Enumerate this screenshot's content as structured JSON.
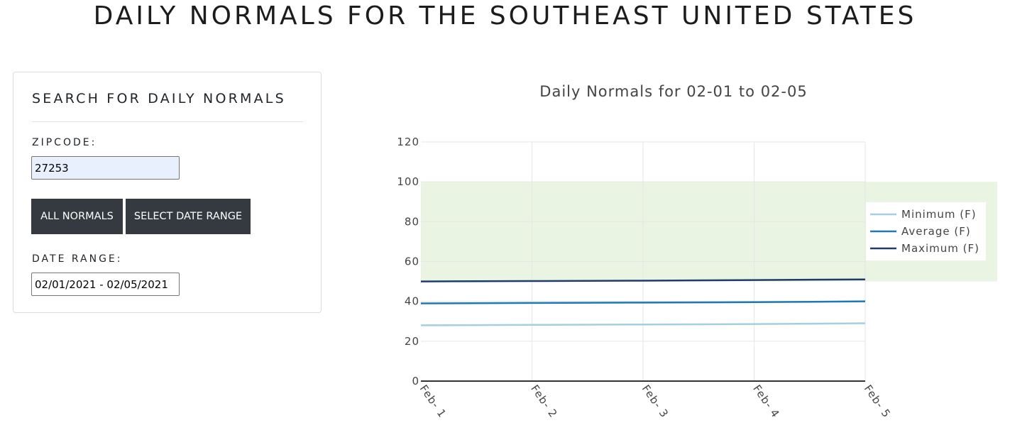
{
  "page": {
    "title": "DAILY NORMALS FOR THE SOUTHEAST UNITED STATES"
  },
  "search": {
    "card_title": "SEARCH FOR DAILY NORMALS",
    "zipcode_label": "ZIPCODE:",
    "zipcode_value": "27253",
    "all_normals_button": "ALL NORMALS",
    "select_range_button": "SELECT DATE RANGE",
    "date_range_label": "DATE RANGE:",
    "date_range_value": "02/01/2021 - 02/05/2021"
  },
  "colors": {
    "minimum": "#a6cee3",
    "average": "#1f78b4",
    "maximum": "#1f3d6b",
    "comfort_band": "#eaf4e2",
    "button_bg": "#343a40"
  },
  "chart_data": {
    "type": "line",
    "title": "Daily Normals for 02-01 to 02-05",
    "categories": [
      "Feb- 1",
      "Feb- 2",
      "Feb- 3",
      "Feb- 4",
      "Feb- 5"
    ],
    "series": [
      {
        "name": "Minimum (F)",
        "values": [
          28,
          28.2,
          28.4,
          28.6,
          29
        ]
      },
      {
        "name": "Average (F)",
        "values": [
          39,
          39.2,
          39.4,
          39.6,
          40
        ]
      },
      {
        "name": "Maximum (F)",
        "values": [
          50,
          50.2,
          50.4,
          50.7,
          51
        ]
      }
    ],
    "shaded_band": [
      50,
      100
    ],
    "ylim": [
      0,
      120
    ],
    "yticks": [
      0,
      20,
      40,
      60,
      80,
      100,
      120
    ],
    "grid": true,
    "legend_position": "right"
  }
}
